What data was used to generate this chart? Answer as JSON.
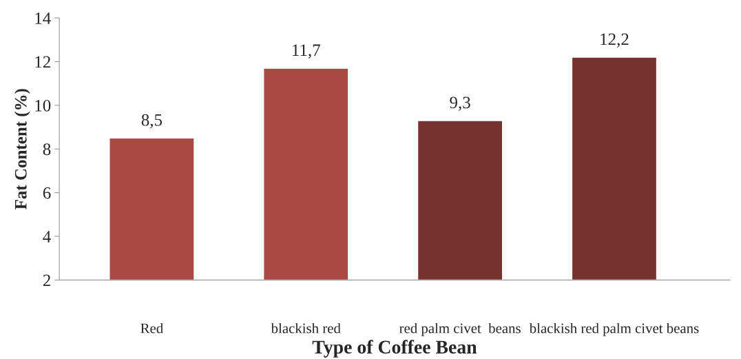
{
  "chart_data": {
    "type": "bar",
    "xlabel": "Type of Coffee Bean",
    "ylabel": "Fat Content (%)",
    "categories": [
      "Red",
      "blackish red",
      "red palm civet  beans",
      "blackish red palm civet beans"
    ],
    "values": [
      8.5,
      11.7,
      9.3,
      12.2
    ],
    "value_labels": [
      "8,5",
      "11,7",
      "9,3",
      "12,2"
    ],
    "colors": [
      "#a84a42",
      "#a84a42",
      "#76322e",
      "#76322e"
    ],
    "ylim": [
      2,
      14
    ],
    "yticks": [
      2,
      4,
      6,
      8,
      10,
      12,
      14
    ],
    "grid": false,
    "legend": false
  }
}
